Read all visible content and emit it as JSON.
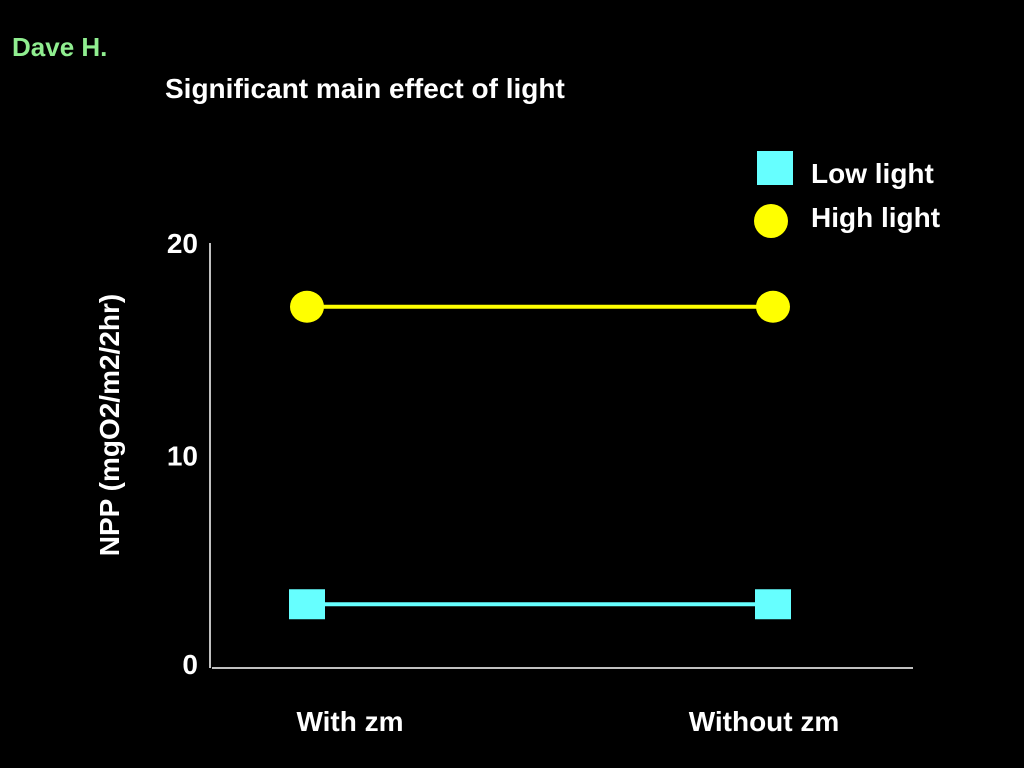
{
  "slide": {
    "author": "Dave H."
  },
  "chart_data": {
    "type": "line",
    "title": "Significant main effect of light",
    "ylabel": "NPP (mgO2/m2/2hr)",
    "xlabel": "",
    "categories": [
      "With zm",
      "Without zm"
    ],
    "ylim": [
      0,
      20
    ],
    "yticks": [
      0,
      10,
      20
    ],
    "legend_position": "top-right",
    "grid": false,
    "series": [
      {
        "name": "Low light",
        "values": [
          3,
          3
        ],
        "color": "#66ffff",
        "marker": "square"
      },
      {
        "name": "High light",
        "values": [
          17,
          17
        ],
        "color": "#ffff00",
        "marker": "circle"
      }
    ]
  }
}
